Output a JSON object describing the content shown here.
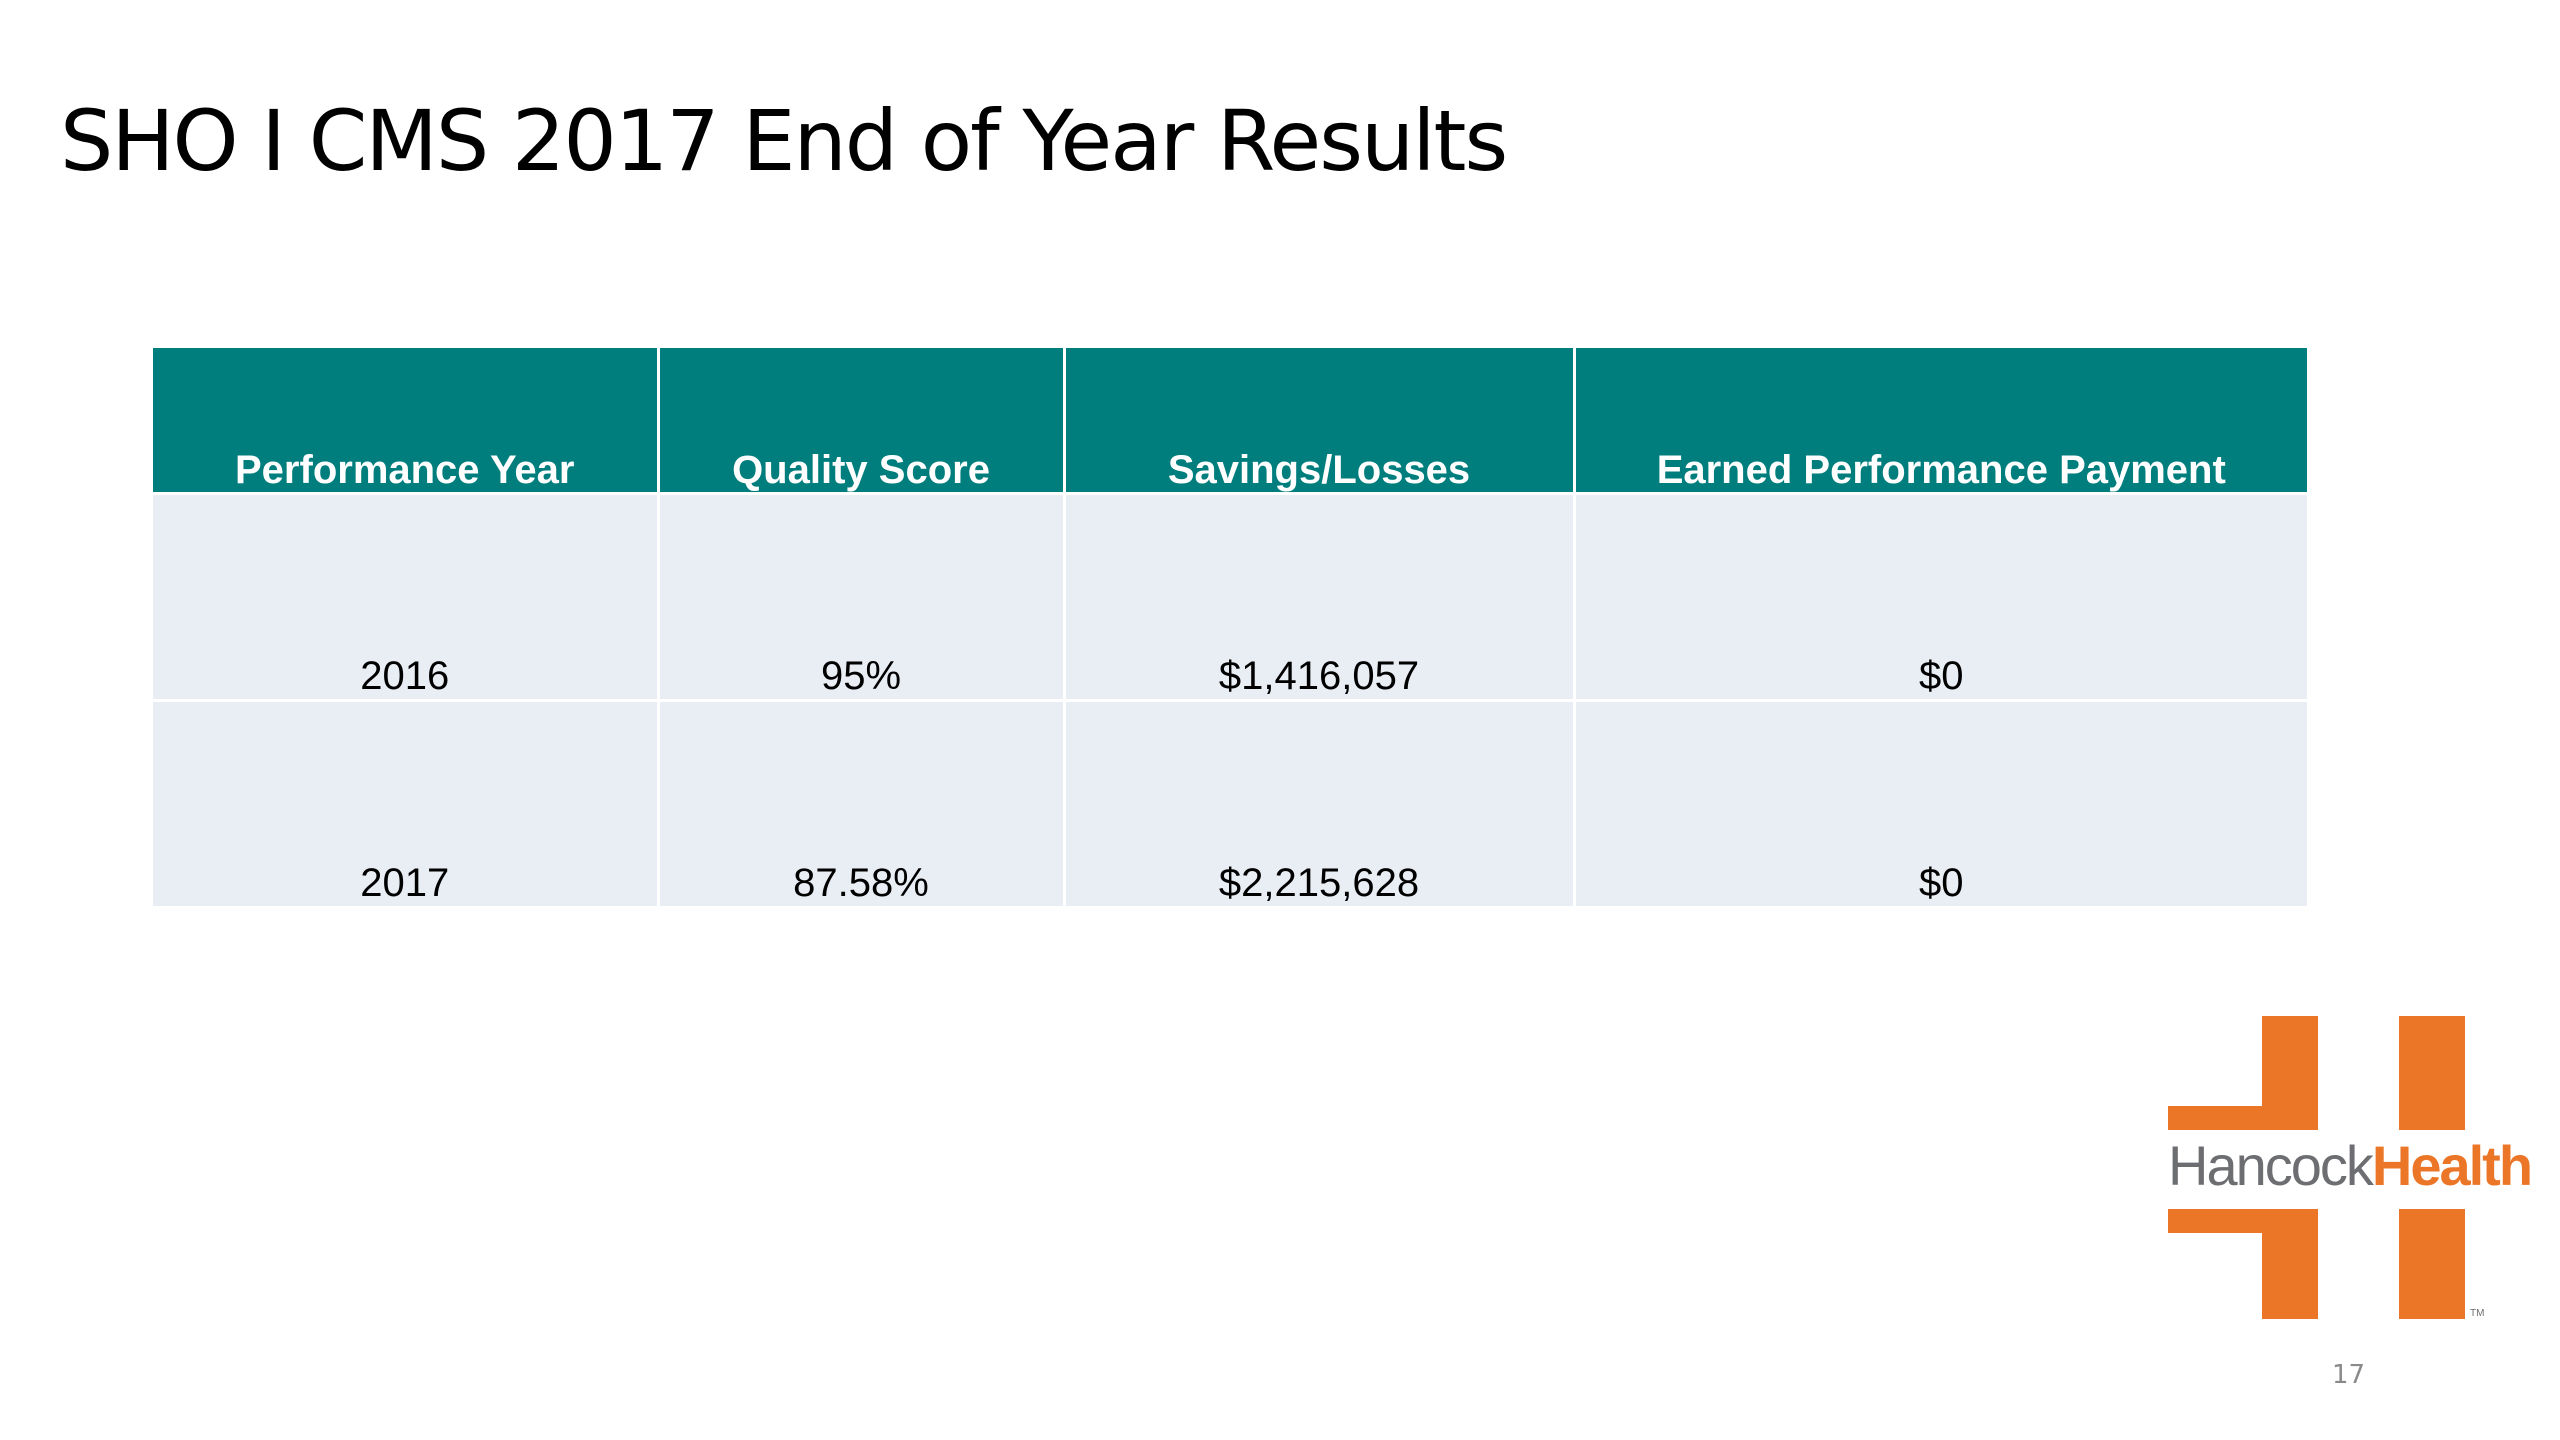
{
  "slide": {
    "title": "SHO I CMS 2017 End of Year Results",
    "page_number": "17"
  },
  "table": {
    "headers": [
      "Performance Year",
      "Quality Score",
      "Savings/Losses",
      "Earned Performance Payment"
    ],
    "rows": [
      [
        "2016",
        "95%",
        "$1,416,057",
        "$0"
      ],
      [
        "2017",
        "87.58%",
        "$2,215,628",
        "$0"
      ]
    ]
  },
  "logo": {
    "text_part1": "Hancock",
    "text_part2": "Health",
    "trademark": "TM",
    "brand_orange": "#ec7628",
    "brand_gray": "#6d6e71"
  },
  "colors": {
    "header_bg": "#007d7d",
    "header_text": "#ffffff",
    "row_bg": "#e9edf4"
  }
}
